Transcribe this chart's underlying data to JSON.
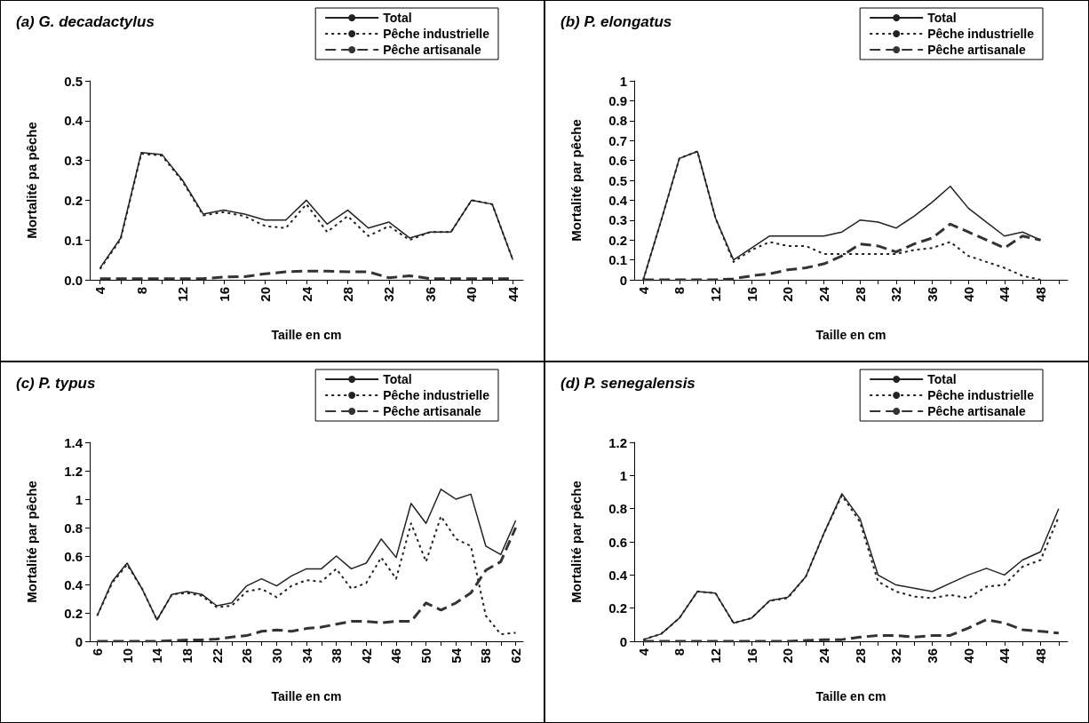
{
  "chart_data": [
    {
      "type": "line",
      "title": "(a) G. decadactylus",
      "xlabel": "Taille en cm",
      "ylabel": "Mortalité pa pêche",
      "legend": "top right",
      "grid": false,
      "marker": "none",
      "categories": [
        "4",
        null,
        "8",
        null,
        "12",
        null,
        "16",
        null,
        "20",
        null,
        "24",
        null,
        "28",
        null,
        "32",
        null,
        "36",
        null,
        "40",
        null,
        "44"
      ],
      "ylim": [
        0,
        0.5
      ],
      "yticks": [
        {
          "value": 0,
          "label": "0.0"
        },
        0.1,
        0.2,
        0.3,
        0.4,
        0.5
      ],
      "series": [
        {
          "name": "Total",
          "color": "#222222",
          "line_style": "solid",
          "values": [
            0.03,
            0.105,
            0.32,
            0.315,
            0.25,
            0.165,
            0.175,
            0.165,
            0.15,
            0.15,
            0.2,
            0.14,
            0.175,
            0.13,
            0.145,
            0.105,
            0.12,
            0.12,
            0.2,
            0.19,
            0.05
          ]
        },
        {
          "name": "Pêche industrielle",
          "color": "#222222",
          "line_style": "dotted",
          "values": [
            0.027,
            0.102,
            0.317,
            0.312,
            0.247,
            0.162,
            0.17,
            0.16,
            0.135,
            0.13,
            0.19,
            0.12,
            0.16,
            0.11,
            0.135,
            0.1,
            0.12,
            0.12,
            0.2,
            0.19,
            0.05
          ]
        },
        {
          "name": "Pêche artisanale",
          "color": "#333333",
          "line_style": "dashed",
          "values": [
            0.003,
            0.003,
            0.003,
            0.003,
            0.003,
            0.003,
            0.007,
            0.008,
            0.015,
            0.02,
            0.022,
            0.022,
            0.02,
            0.02,
            0.005,
            0.01,
            0.003,
            0.003,
            0.003,
            0.003,
            0.003
          ]
        }
      ]
    },
    {
      "type": "line",
      "title": "(b) P. elongatus",
      "xlabel": "Taille en cm",
      "ylabel": "Mortalité par pêche",
      "legend": "top right",
      "grid": false,
      "marker": "none",
      "categories": [
        "4",
        null,
        "8",
        null,
        "12",
        null,
        "16",
        null,
        "20",
        null,
        "24",
        null,
        "28",
        null,
        "32",
        null,
        "36",
        null,
        "40",
        null,
        "44",
        null,
        "48",
        null
      ],
      "ylim": [
        0,
        1
      ],
      "yticks": [
        0,
        0.1,
        0.2,
        0.3,
        0.4,
        0.5,
        0.6,
        0.7,
        0.8,
        0.9,
        1
      ],
      "series": [
        {
          "name": "Total",
          "color": "#222222",
          "line_style": "solid",
          "values": [
            0,
            0.3,
            0.61,
            0.645,
            0.31,
            0.1,
            0.16,
            0.22,
            0.22,
            0.22,
            0.22,
            0.24,
            0.3,
            0.29,
            0.26,
            0.32,
            0.39,
            0.47,
            0.36,
            0.29,
            0.22,
            0.24,
            0.2,
            null
          ]
        },
        {
          "name": "Pêche industrielle",
          "color": "#222222",
          "line_style": "dotted",
          "values": [
            0,
            0.3,
            0.61,
            0.645,
            0.31,
            0.09,
            0.15,
            0.19,
            0.17,
            0.17,
            0.13,
            0.13,
            0.13,
            0.13,
            0.13,
            0.15,
            0.16,
            0.19,
            0.12,
            0.09,
            0.06,
            0.02,
            0,
            null
          ]
        },
        {
          "name": "Pêche artisanale",
          "color": "#333333",
          "line_style": "dashed",
          "values": [
            0,
            0,
            0,
            0,
            0,
            0.005,
            0.02,
            0.03,
            0.05,
            0.06,
            0.08,
            0.12,
            0.18,
            0.17,
            0.14,
            0.18,
            0.21,
            0.28,
            0.24,
            0.2,
            0.16,
            0.22,
            0.2,
            null
          ]
        }
      ]
    },
    {
      "type": "line",
      "title": "(c) P. typus",
      "xlabel": "Taille en cm",
      "ylabel": "Mortalité par pêche",
      "legend": "top right",
      "grid": false,
      "marker": "none",
      "categories": [
        "6",
        null,
        "10",
        null,
        "14",
        null,
        "18",
        null,
        "22",
        null,
        "26",
        null,
        "30",
        null,
        "34",
        null,
        "38",
        null,
        "42",
        null,
        "46",
        null,
        "50",
        null,
        "54",
        null,
        "58",
        null,
        "62"
      ],
      "ylim": [
        0,
        1.4
      ],
      "yticks": [
        0,
        0.2,
        0.4,
        0.6,
        0.8,
        1,
        1.2,
        1.4
      ],
      "series": [
        {
          "name": "Total",
          "color": "#222222",
          "line_style": "solid",
          "values": [
            0.18,
            0.42,
            0.55,
            0.37,
            0.15,
            0.33,
            0.35,
            0.33,
            0.25,
            0.27,
            0.39,
            0.44,
            0.39,
            0.46,
            0.51,
            0.51,
            0.6,
            0.51,
            0.55,
            0.72,
            0.59,
            0.97,
            0.83,
            1.07,
            1.0,
            1.035,
            0.67,
            0.61,
            0.85
          ]
        },
        {
          "name": "Pêche industrielle",
          "color": "#222222",
          "line_style": "dotted",
          "values": [
            0.18,
            0.41,
            0.54,
            0.37,
            0.15,
            0.33,
            0.34,
            0.32,
            0.24,
            0.25,
            0.35,
            0.37,
            0.31,
            0.39,
            0.43,
            0.42,
            0.51,
            0.37,
            0.41,
            0.59,
            0.44,
            0.83,
            0.56,
            0.88,
            0.72,
            0.67,
            0.18,
            0.05,
            0.06
          ]
        },
        {
          "name": "Pêche artisanale",
          "color": "#333333",
          "line_style": "dashed",
          "values": [
            0,
            0,
            0,
            0,
            0,
            0.005,
            0.01,
            0.01,
            0.015,
            0.03,
            0.04,
            0.07,
            0.08,
            0.07,
            0.09,
            0.1,
            0.12,
            0.14,
            0.14,
            0.13,
            0.14,
            0.14,
            0.27,
            0.22,
            0.27,
            0.34,
            0.5,
            0.56,
            0.8
          ]
        }
      ]
    },
    {
      "type": "line",
      "title": "(d) P. senegalensis",
      "xlabel": "Taille en cm",
      "ylabel": "Mortalité par pêche",
      "legend": "top right",
      "grid": false,
      "marker": "none",
      "categories": [
        "4",
        null,
        "8",
        null,
        "12",
        null,
        "16",
        null,
        "20",
        null,
        "24",
        null,
        "28",
        null,
        "32",
        null,
        "36",
        null,
        "40",
        null,
        "44",
        null,
        "48",
        null
      ],
      "ylim": [
        0,
        1.2
      ],
      "yticks": [
        0,
        0.2,
        0.4,
        0.6,
        0.8,
        1,
        1.2
      ],
      "series": [
        {
          "name": "Total",
          "color": "#222222",
          "line_style": "solid",
          "values": [
            0.01,
            0.045,
            0.14,
            0.3,
            0.29,
            0.11,
            0.14,
            0.245,
            0.265,
            0.39,
            0.65,
            0.89,
            0.74,
            0.4,
            0.34,
            0.32,
            0.3,
            0.35,
            0.4,
            0.44,
            0.4,
            0.49,
            0.54,
            0.8
          ]
        },
        {
          "name": "Pêche industrielle",
          "color": "#222222",
          "line_style": "dotted",
          "values": [
            0.01,
            0.045,
            0.14,
            0.3,
            0.29,
            0.11,
            0.14,
            0.245,
            0.26,
            0.39,
            0.65,
            0.88,
            0.72,
            0.36,
            0.3,
            0.27,
            0.26,
            0.28,
            0.26,
            0.33,
            0.34,
            0.45,
            0.49,
            0.75
          ]
        },
        {
          "name": "Pêche artisanale",
          "color": "#333333",
          "line_style": "dashed",
          "values": [
            0,
            0,
            0,
            0,
            0,
            0,
            0,
            0,
            0,
            0.005,
            0.01,
            0.01,
            0.025,
            0.035,
            0.035,
            0.025,
            0.035,
            0.035,
            0.08,
            0.13,
            0.11,
            0.07,
            0.06,
            0.05
          ]
        }
      ]
    }
  ]
}
